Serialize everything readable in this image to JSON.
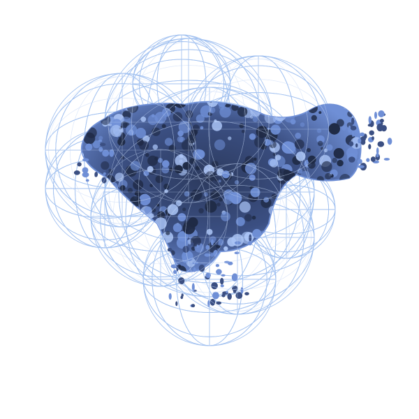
{
  "scene": {
    "subject": "density-map-render",
    "background_color": "#ffffff",
    "mesh_color": "#9fbff0",
    "density_color": "#6f8fd6",
    "density_shadow_color": "#1f2a45",
    "density_highlight_color": "#a9c3f5"
  }
}
